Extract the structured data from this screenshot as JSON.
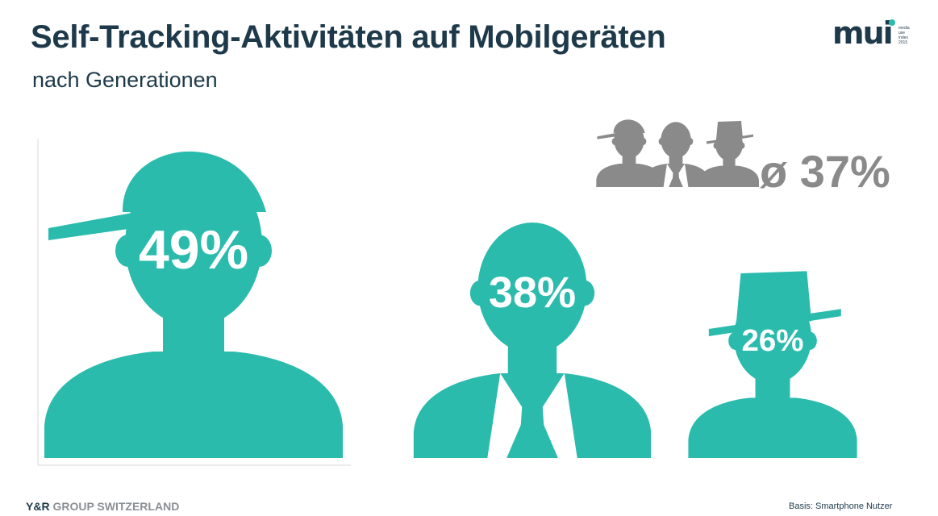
{
  "header": {
    "title": "Self-Tracking-Aktivitäten auf Mobilgeräten",
    "subtitle": "nach Generationen"
  },
  "logo": {
    "mark": "mui",
    "lines": [
      "media",
      "use",
      "index",
      "2015"
    ]
  },
  "colors": {
    "teal": "#2bbbad",
    "grey": "#8a8a8a",
    "title": "#1e3a4a"
  },
  "chart_data": {
    "type": "bar",
    "title": "Self-Tracking-Aktivitäten auf Mobilgeräten",
    "subtitle": "nach Generationen",
    "categories": [
      "",
      "",
      ""
    ],
    "values": [
      49,
      38,
      26
    ],
    "value_labels": [
      "49%",
      "38%",
      "26%"
    ],
    "unit": "%",
    "icons": [
      "person-cap-icon",
      "person-suit-icon",
      "person-hat-icon"
    ],
    "average": {
      "value": 37,
      "label": "ø 37%"
    },
    "grid": false
  },
  "footer": {
    "brand": "Y&R",
    "group": "GROUP SWITZERLAND",
    "note": "Basis: Smartphone Nutzer"
  }
}
